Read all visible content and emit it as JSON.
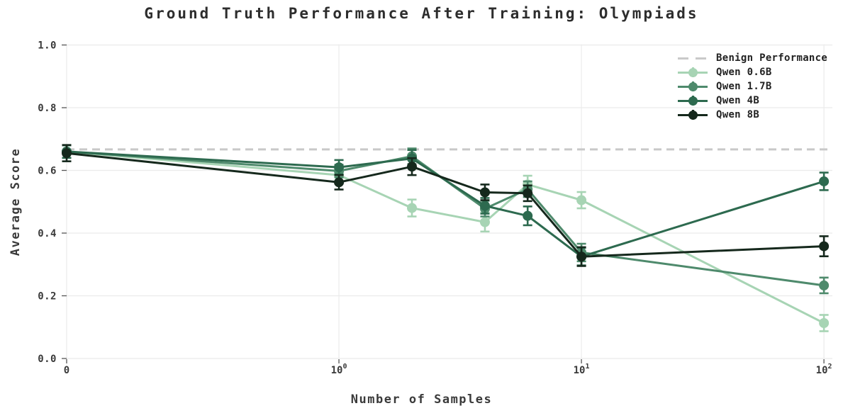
{
  "chart_data": {
    "type": "line",
    "title": "Ground Truth Performance After Training: Olympiads",
    "xlabel": "Number of Samples",
    "ylabel": "Average Score",
    "x_scale": "symlog",
    "ylim": [
      0.0,
      1.0
    ],
    "grid": true,
    "legend_position": "upper right",
    "x": [
      0,
      1,
      2,
      4,
      6,
      10,
      100
    ],
    "xticks": [
      {
        "value": 0,
        "text": "0"
      },
      {
        "value": 1,
        "base": "10",
        "exp": "0"
      },
      {
        "value": 10,
        "base": "10",
        "exp": "1"
      },
      {
        "value": 100,
        "base": "10",
        "exp": "2"
      }
    ],
    "yticks": [
      0.0,
      0.2,
      0.4,
      0.6,
      0.8,
      1.0
    ],
    "benign": {
      "label": "Benign Performance",
      "value": 0.667,
      "color": "#c9c9c9",
      "style": "dashed"
    },
    "series": [
      {
        "name": "Qwen 0.6B",
        "color": "#a7d4b4",
        "values": [
          0.66,
          0.585,
          0.48,
          0.435,
          0.555,
          0.505,
          0.113
        ],
        "errors": [
          0.02,
          0.02,
          0.027,
          0.03,
          0.028,
          0.026,
          0.026
        ]
      },
      {
        "name": "Qwen 1.7B",
        "color": "#4e8a6c",
        "values": [
          0.66,
          0.598,
          0.645,
          0.478,
          0.54,
          0.338,
          0.233
        ],
        "errors": [
          0.02,
          0.02,
          0.025,
          0.025,
          0.025,
          0.028,
          0.025
        ]
      },
      {
        "name": "Qwen 4B",
        "color": "#2d6a4f",
        "values": [
          0.66,
          0.61,
          0.638,
          0.487,
          0.455,
          0.325,
          0.565
        ],
        "errors": [
          0.02,
          0.023,
          0.027,
          0.025,
          0.03,
          0.028,
          0.028
        ]
      },
      {
        "name": "Qwen 8B",
        "color": "#15281c",
        "values": [
          0.655,
          0.562,
          0.612,
          0.53,
          0.527,
          0.325,
          0.358
        ],
        "errors": [
          0.026,
          0.023,
          0.027,
          0.025,
          0.025,
          0.03,
          0.032
        ]
      }
    ]
  }
}
